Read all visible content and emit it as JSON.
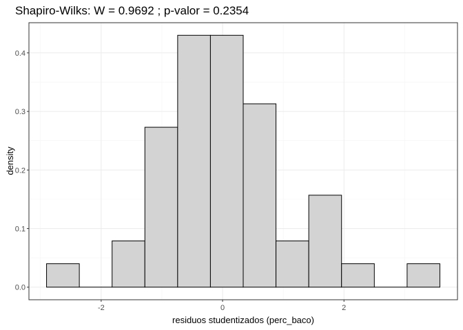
{
  "chart_data": {
    "type": "bar",
    "title": "Shapiro-Wilks: W =  0.9692 ; p-valor =  0.2354",
    "xlabel": "residuos studentizados (perc_baco)",
    "ylabel": "density",
    "bin_width": 0.54,
    "bins": [
      {
        "x0": -2.9,
        "x1": -2.36,
        "value": 0.04
      },
      {
        "x0": -2.36,
        "x1": -1.82,
        "value": 0.0
      },
      {
        "x0": -1.82,
        "x1": -1.28,
        "value": 0.079
      },
      {
        "x0": -1.28,
        "x1": -0.74,
        "value": 0.273
      },
      {
        "x0": -0.74,
        "x1": -0.2,
        "value": 0.43
      },
      {
        "x0": -0.2,
        "x1": 0.34,
        "value": 0.43
      },
      {
        "x0": 0.34,
        "x1": 0.88,
        "value": 0.313
      },
      {
        "x0": 0.88,
        "x1": 1.42,
        "value": 0.079
      },
      {
        "x0": 1.42,
        "x1": 1.96,
        "value": 0.157
      },
      {
        "x0": 1.96,
        "x1": 2.5,
        "value": 0.04
      },
      {
        "x0": 2.5,
        "x1": 3.04,
        "value": 0.0
      },
      {
        "x0": 3.04,
        "x1": 3.58,
        "value": 0.04
      }
    ],
    "xlim": [
      -3.19,
      3.87
    ],
    "ylim": [
      -0.0215,
      0.4515
    ],
    "x_ticks": [
      -2,
      0,
      2
    ],
    "x_tick_labels": [
      "-2",
      "0",
      "2"
    ],
    "y_ticks": [
      0.0,
      0.1,
      0.2,
      0.3,
      0.4
    ],
    "y_tick_labels": [
      "0.0",
      "0.1",
      "0.2",
      "0.3",
      "0.4"
    ],
    "grid": true,
    "bar_fill": "#d3d3d3",
    "bar_outline": "#000000"
  }
}
